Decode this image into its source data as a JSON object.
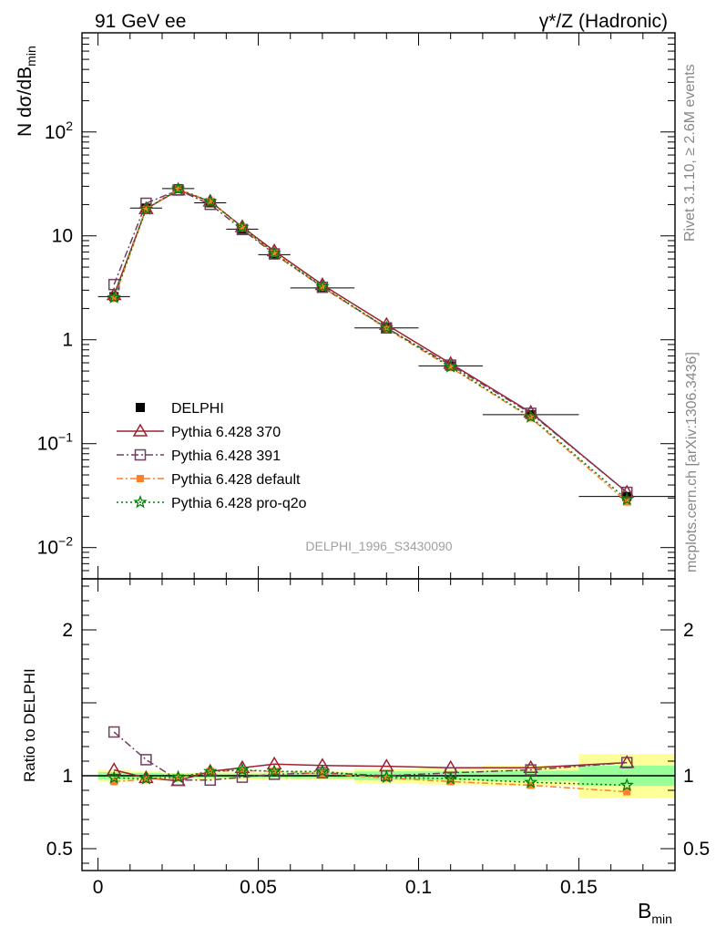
{
  "header": {
    "left": "91 GeV ee",
    "right": "γ*/Z (Hadronic)"
  },
  "side_texts": {
    "rivet": "Rivet 3.1.10, ≥ 2.6M events",
    "mcplots": "mcplots.cern.ch [arXiv:1306.3436]"
  },
  "watermark": "DELPHI_1996_S3430090",
  "axes": {
    "ylabel_main": "N dσ/dB",
    "ylabel_main_sub": "min",
    "ylabel_ratio": "Ratio to DELPHI",
    "xlabel": "B",
    "xlabel_sub": "min",
    "xticks": [
      "0",
      "0.05",
      "0.1",
      "0.15"
    ],
    "yticks_main": [
      {
        "base": "10",
        "exp": "−2"
      },
      {
        "base": "10",
        "exp": "−1"
      },
      {
        "base": "1",
        "exp": ""
      },
      {
        "base": "10",
        "exp": ""
      },
      {
        "base": "10",
        "exp": "2"
      }
    ],
    "yticks_ratio": [
      "0.5",
      "1",
      "2"
    ]
  },
  "colors": {
    "data": "#000000",
    "p370": "#a02030",
    "p391": "#704060",
    "pdef": "#ff7f2a",
    "pq2o": "#008000",
    "band_outer": "#ffff99",
    "band_inner": "#99ff99"
  },
  "chart_data": {
    "type": "line",
    "x": [
      0.005,
      0.015,
      0.025,
      0.035,
      0.045,
      0.055,
      0.07,
      0.09,
      0.11,
      0.135,
      0.165
    ],
    "xlim": [
      -0.005,
      0.18
    ],
    "ylim_main": [
      0.005,
      900
    ],
    "log_y_main": true,
    "ylim_ratio": [
      0.35,
      2.35
    ],
    "data": {
      "name": "DELPHI",
      "values": [
        2.6,
        18.5,
        28.5,
        20.8,
        11.6,
        6.6,
        3.15,
        1.3,
        0.56,
        0.19,
        0.031
      ],
      "xerr": [
        0.005,
        0.005,
        0.005,
        0.005,
        0.005,
        0.005,
        0.01,
        0.01,
        0.01,
        0.015,
        0.015
      ],
      "ratio_band_inner": [
        0.025,
        0.02,
        0.015,
        0.015,
        0.015,
        0.015,
        0.02,
        0.03,
        0.03,
        0.035,
        0.07
      ],
      "ratio_band_outer": [
        0.04,
        0.03,
        0.02,
        0.025,
        0.025,
        0.025,
        0.03,
        0.05,
        0.06,
        0.07,
        0.15
      ]
    },
    "series": [
      {
        "name": "Pythia 6.428 370",
        "key": "p370",
        "marker": "triangle",
        "dash": "",
        "values": [
          2.7,
          18.2,
          27.5,
          21.5,
          12.2,
          7.15,
          3.38,
          1.4,
          0.59,
          0.2,
          0.034
        ],
        "ratio": [
          1.04,
          0.985,
          0.965,
          1.03,
          1.055,
          1.08,
          1.07,
          1.065,
          1.055,
          1.055,
          1.09
        ]
      },
      {
        "name": "Pythia 6.428 391",
        "key": "p391",
        "marker": "square",
        "dash": "8,3,2,3",
        "values": [
          3.4,
          20.6,
          27.6,
          20.1,
          11.5,
          6.7,
          3.2,
          1.3,
          0.57,
          0.196,
          0.034
        ],
        "ratio": [
          1.3,
          1.11,
          0.97,
          0.97,
          0.99,
          1.01,
          1.02,
          1.0,
          1.02,
          1.04,
          1.09
        ]
      },
      {
        "name": "Pythia 6.428 default",
        "key": "pdef",
        "marker": "fsquare",
        "dash": "7,3,2,3",
        "values": [
          2.5,
          18.0,
          28.1,
          21.5,
          12.0,
          6.8,
          3.2,
          1.28,
          0.54,
          0.177,
          0.0275
        ],
        "ratio": [
          0.96,
          0.975,
          0.985,
          1.03,
          1.035,
          1.03,
          1.015,
          0.985,
          0.96,
          0.935,
          0.89
        ]
      },
      {
        "name": "Pythia 6.428 pro-q2o",
        "key": "pq2o",
        "marker": "star",
        "dash": "2,3",
        "values": [
          2.55,
          18.1,
          28.3,
          21.4,
          12.1,
          6.8,
          3.25,
          1.3,
          0.55,
          0.181,
          0.029
        ],
        "ratio": [
          0.985,
          0.98,
          0.99,
          1.03,
          1.04,
          1.03,
          1.03,
          0.99,
          0.98,
          0.955,
          0.935
        ]
      }
    ]
  }
}
